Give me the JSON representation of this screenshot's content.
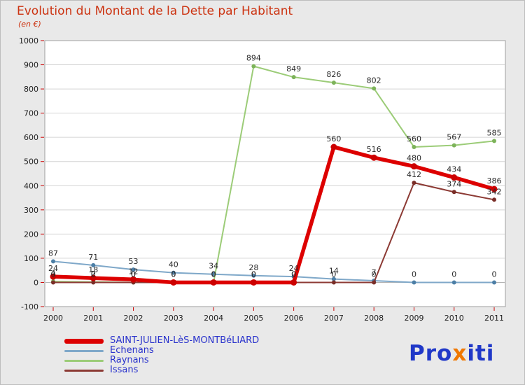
{
  "title": "Evolution du Montant de la Dette par Habitant",
  "subtitle": "(en €)",
  "colors": {
    "background": "#e9e9e9",
    "title": "#cc3311",
    "legend_text": "#2a33cc",
    "axis_tick": "#cc0000",
    "axis_label": "#222222",
    "data_label": "#2b2b2b",
    "plot_background": "#ffffff",
    "plot_border": "#9e9e9e",
    "grid_line": "#d4d4d4",
    "grid_zero_line": "#b3b3b3"
  },
  "logo": {
    "parts": [
      {
        "text": "Pro",
        "color": "#2038c8"
      },
      {
        "text": "x",
        "color": "#f07800"
      },
      {
        "text": "iti",
        "color": "#2038c8"
      }
    ]
  },
  "chart_data": {
    "type": "line",
    "title": "Evolution du Montant de la Dette par Habitant",
    "ylabel": "en €",
    "xlabel": "",
    "grid": true,
    "legend_position": "bottom-left",
    "x": [
      2000,
      2001,
      2002,
      2003,
      2004,
      2005,
      2006,
      2007,
      2008,
      2009,
      2010,
      2011
    ],
    "ylim": [
      -100,
      1000
    ],
    "ytick_step": 100,
    "yticks": [
      1000,
      900,
      800,
      700,
      600,
      500,
      400,
      300,
      200,
      100,
      0,
      -100
    ],
    "series": [
      {
        "name": "SAINT-JULIEN-LèS-MONTBéLIARD",
        "color": "#dd0000",
        "marker_color": "#cc0000",
        "line_width": 5.5,
        "values": [
          24,
          18,
          12,
          0,
          0,
          0,
          0,
          560,
          516,
          480,
          434,
          386
        ]
      },
      {
        "name": "Echenans",
        "color": "#7fa8c9",
        "marker_color": "#4d7fa6",
        "line_width": 2,
        "values": [
          87,
          71,
          53,
          40,
          34,
          28,
          24,
          14,
          7,
          0,
          0,
          0
        ]
      },
      {
        "name": "Raynans",
        "color": "#9ccc78",
        "marker_color": "#7db35a",
        "line_width": 2,
        "values": [
          4,
          2,
          0,
          0,
          0,
          894,
          849,
          826,
          802,
          560,
          567,
          585
        ]
      },
      {
        "name": "Issans",
        "color": "#8c3a34",
        "marker_color": "#7a2e28",
        "line_width": 2,
        "values": [
          0,
          0,
          0,
          0,
          0,
          0,
          0,
          0,
          0,
          412,
          374,
          342
        ]
      }
    ]
  }
}
